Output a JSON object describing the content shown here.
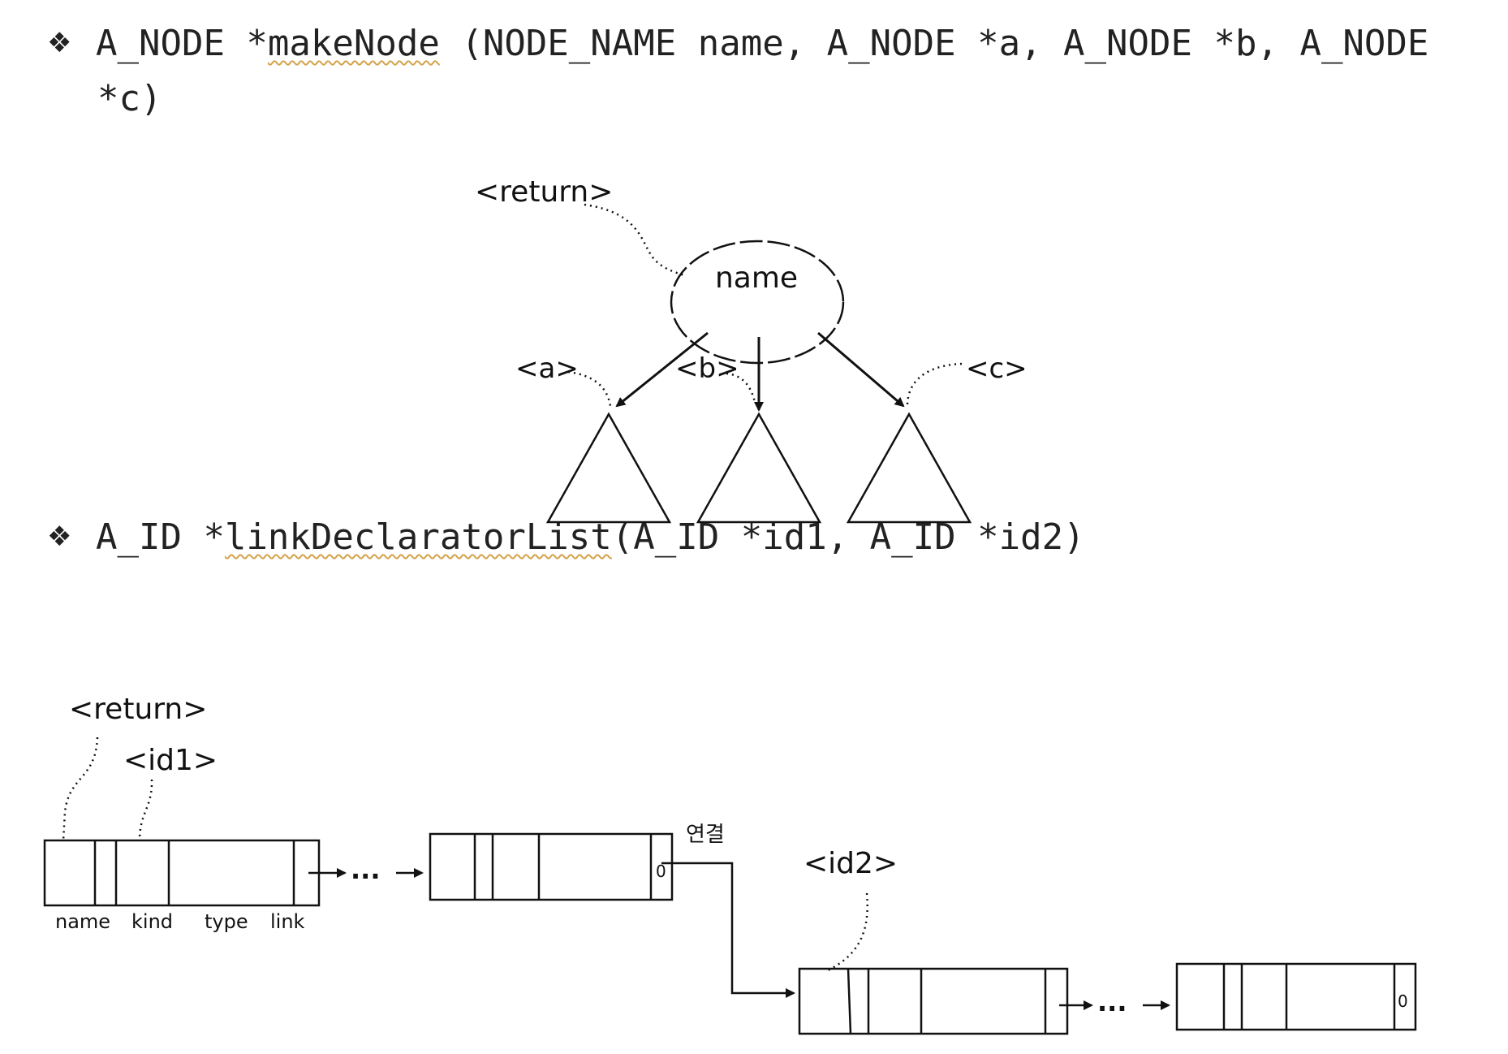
{
  "func1": {
    "bullet": "❖",
    "ret": "A_NODE *",
    "name": "makeNode",
    "args": " (NODE_NAME name, A_NODE *a, A_NODE *b, A_NODE",
    "continuation": "*c)"
  },
  "tree": {
    "return_label": "<return>",
    "node_label": "name",
    "a_label": "<a>",
    "b_label": "<b>",
    "c_label": "<c>"
  },
  "func2": {
    "bullet": "❖",
    "ret": "A_ID *",
    "name": "linkDeclaratorList",
    "args": "(A_ID *id1, A_ID *id2)"
  },
  "list": {
    "return_label": "<return>",
    "id1_label": "<id1>",
    "id2_label": "<id2>",
    "link_word": "연결",
    "field_labels": [
      "name",
      "kind",
      "type",
      "link"
    ],
    "null_marks": [
      "0",
      "0"
    ],
    "ellipsis": "..."
  }
}
